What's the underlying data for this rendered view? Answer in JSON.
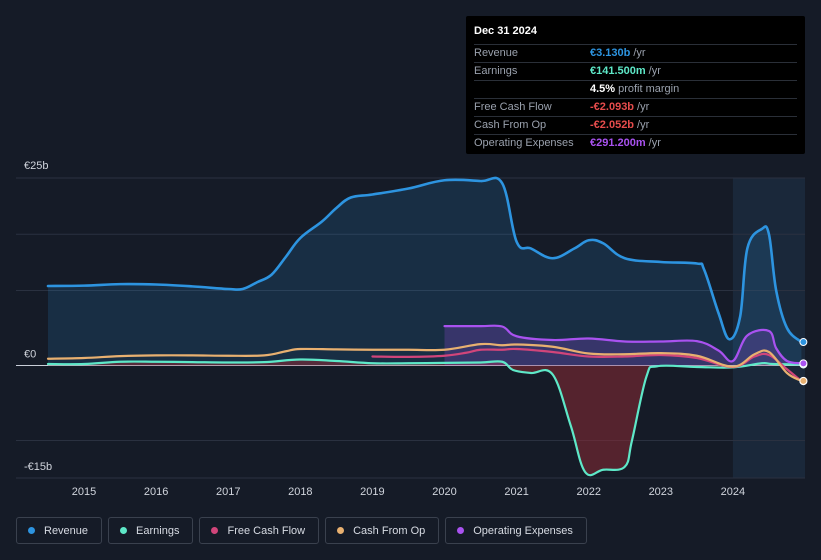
{
  "tooltip": {
    "date": "Dec 31 2024",
    "rows": [
      {
        "label": "Revenue",
        "value": "€3.130b",
        "unit": "/yr",
        "color": "#2d94e0"
      },
      {
        "label": "Earnings",
        "value": "€141.500m",
        "unit": "/yr",
        "color": "#5ee8c8"
      },
      {
        "label": "",
        "value": "4.5%",
        "unit": "profit margin",
        "color": "#ffffff"
      },
      {
        "label": "Free Cash Flow",
        "value": "-€2.093b",
        "unit": "/yr",
        "color": "#e64c4c"
      },
      {
        "label": "Cash From Op",
        "value": "-€2.052b",
        "unit": "/yr",
        "color": "#e64c4c"
      },
      {
        "label": "Operating Expenses",
        "value": "€291.200m",
        "unit": "/yr",
        "color": "#a952f0"
      }
    ]
  },
  "chart_data": {
    "type": "area",
    "y_unit": "€ billions",
    "ylim": [
      -15,
      25
    ],
    "y_ticks": [
      {
        "value": 25,
        "label": "€25b"
      },
      {
        "value": 0,
        "label": "€0"
      },
      {
        "value": -15,
        "label": "-€15b"
      }
    ],
    "xlim": [
      2014.5,
      2025.0
    ],
    "x_ticks": [
      "2015",
      "2016",
      "2017",
      "2018",
      "2019",
      "2020",
      "2021",
      "2022",
      "2023",
      "2024"
    ],
    "grid": true,
    "forecast_shade_start": 2024.0,
    "series": [
      {
        "name": "Revenue",
        "color": "#2d94e0",
        "fill": true,
        "points": [
          [
            2014.5,
            10.6
          ],
          [
            2015.0,
            10.65
          ],
          [
            2015.5,
            10.85
          ],
          [
            2016.0,
            10.8
          ],
          [
            2016.5,
            10.55
          ],
          [
            2017.0,
            10.2
          ],
          [
            2017.2,
            10.2
          ],
          [
            2017.4,
            11.1
          ],
          [
            2017.6,
            12.1
          ],
          [
            2017.8,
            14.5
          ],
          [
            2018.0,
            17.0
          ],
          [
            2018.3,
            19.2
          ],
          [
            2018.5,
            21.0
          ],
          [
            2018.7,
            22.4
          ],
          [
            2019.0,
            22.8
          ],
          [
            2019.5,
            23.6
          ],
          [
            2020.0,
            24.7
          ],
          [
            2020.5,
            24.6
          ],
          [
            2020.8,
            24.3
          ],
          [
            2021.0,
            16.5
          ],
          [
            2021.2,
            15.6
          ],
          [
            2021.5,
            14.3
          ],
          [
            2021.8,
            15.6
          ],
          [
            2022.0,
            16.7
          ],
          [
            2022.2,
            16.3
          ],
          [
            2022.5,
            14.3
          ],
          [
            2023.0,
            13.8
          ],
          [
            2023.5,
            13.6
          ],
          [
            2023.6,
            12.8
          ],
          [
            2023.8,
            7.0
          ],
          [
            2023.95,
            3.5
          ],
          [
            2024.1,
            6.5
          ],
          [
            2024.2,
            15.6
          ],
          [
            2024.4,
            18.2
          ],
          [
            2024.5,
            17.5
          ],
          [
            2024.6,
            10.0
          ],
          [
            2024.75,
            5.0
          ],
          [
            2024.95,
            3.13
          ]
        ]
      },
      {
        "name": "Earnings",
        "color": "#5ee8c8",
        "fill": true,
        "points": [
          [
            2014.5,
            0.2
          ],
          [
            2015.0,
            0.2
          ],
          [
            2015.5,
            0.5
          ],
          [
            2016.0,
            0.5
          ],
          [
            2016.5,
            0.45
          ],
          [
            2017.0,
            0.4
          ],
          [
            2017.5,
            0.45
          ],
          [
            2018.0,
            0.8
          ],
          [
            2018.5,
            0.6
          ],
          [
            2019.0,
            0.3
          ],
          [
            2019.5,
            0.3
          ],
          [
            2020.0,
            0.35
          ],
          [
            2020.5,
            0.4
          ],
          [
            2020.8,
            0.5
          ],
          [
            2020.95,
            -0.6
          ],
          [
            2021.2,
            -1.0
          ],
          [
            2021.5,
            -1.2
          ],
          [
            2021.75,
            -8.0
          ],
          [
            2021.95,
            -14.2
          ],
          [
            2022.2,
            -13.9
          ],
          [
            2022.5,
            -13.5
          ],
          [
            2022.6,
            -10.0
          ],
          [
            2022.8,
            -1.5
          ],
          [
            2022.95,
            -0.1
          ],
          [
            2023.5,
            -0.2
          ],
          [
            2024.0,
            -0.25
          ],
          [
            2024.4,
            0.3
          ],
          [
            2024.55,
            0.2
          ],
          [
            2024.95,
            0.14
          ]
        ]
      },
      {
        "name": "Free Cash Flow",
        "color": "#d1457a",
        "fill": false,
        "points": [
          [
            2019.0,
            1.2
          ],
          [
            2019.5,
            1.15
          ],
          [
            2020.0,
            1.3
          ],
          [
            2020.3,
            1.7
          ],
          [
            2020.5,
            2.1
          ],
          [
            2020.8,
            2.1
          ],
          [
            2021.0,
            2.2
          ],
          [
            2021.5,
            1.8
          ],
          [
            2022.0,
            1.2
          ],
          [
            2022.5,
            1.2
          ],
          [
            2023.0,
            1.4
          ],
          [
            2023.5,
            1.0
          ],
          [
            2024.0,
            -0.2
          ],
          [
            2024.3,
            1.2
          ],
          [
            2024.5,
            1.4
          ],
          [
            2024.75,
            -0.5
          ],
          [
            2024.95,
            -2.093
          ]
        ]
      },
      {
        "name": "Cash From Op",
        "color": "#e8b070",
        "fill": false,
        "points": [
          [
            2014.5,
            0.9
          ],
          [
            2015.0,
            1.0
          ],
          [
            2015.5,
            1.25
          ],
          [
            2016.0,
            1.35
          ],
          [
            2016.5,
            1.35
          ],
          [
            2017.0,
            1.3
          ],
          [
            2017.5,
            1.35
          ],
          [
            2017.8,
            1.9
          ],
          [
            2018.0,
            2.2
          ],
          [
            2018.5,
            2.15
          ],
          [
            2019.0,
            2.1
          ],
          [
            2019.5,
            2.1
          ],
          [
            2020.0,
            2.1
          ],
          [
            2020.5,
            2.85
          ],
          [
            2020.8,
            2.7
          ],
          [
            2021.0,
            2.8
          ],
          [
            2021.5,
            2.5
          ],
          [
            2022.0,
            1.6
          ],
          [
            2022.5,
            1.5
          ],
          [
            2023.0,
            1.65
          ],
          [
            2023.5,
            1.3
          ],
          [
            2024.0,
            -0.15
          ],
          [
            2024.3,
            1.5
          ],
          [
            2024.5,
            1.8
          ],
          [
            2024.75,
            -1.0
          ],
          [
            2024.95,
            -2.052
          ]
        ]
      },
      {
        "name": "Operating Expenses",
        "color": "#a952f0",
        "fill": true,
        "points": [
          [
            2020.0,
            5.25
          ],
          [
            2020.5,
            5.25
          ],
          [
            2020.8,
            5.2
          ],
          [
            2021.0,
            3.9
          ],
          [
            2021.5,
            3.4
          ],
          [
            2022.0,
            3.6
          ],
          [
            2022.5,
            3.2
          ],
          [
            2023.0,
            3.2
          ],
          [
            2023.5,
            3.25
          ],
          [
            2023.8,
            2.0
          ],
          [
            2024.0,
            0.6
          ],
          [
            2024.2,
            4.0
          ],
          [
            2024.5,
            4.6
          ],
          [
            2024.6,
            2.3
          ],
          [
            2024.75,
            0.6
          ],
          [
            2024.95,
            0.29
          ]
        ]
      }
    ]
  },
  "legend": [
    {
      "label": "Revenue",
      "color": "#2d94e0"
    },
    {
      "label": "Earnings",
      "color": "#5ee8c8"
    },
    {
      "label": "Free Cash Flow",
      "color": "#d1457a"
    },
    {
      "label": "Cash From Op",
      "color": "#e8b070"
    },
    {
      "label": "Operating Expenses",
      "color": "#a952f0"
    }
  ]
}
